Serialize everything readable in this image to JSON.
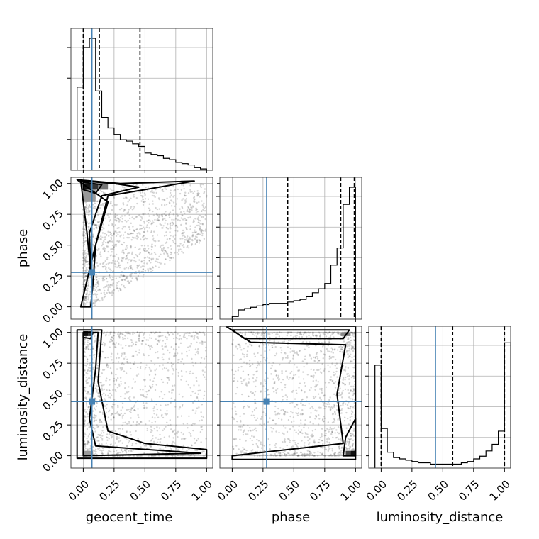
{
  "chart_data": {
    "type": "corner",
    "parameters": [
      "geocent_time",
      "phase",
      "luminosity_distance"
    ],
    "axis_range": [
      -0.1,
      1.05
    ],
    "ticks": [
      0.0,
      0.25,
      0.5,
      0.75,
      1.0
    ],
    "tick_labels": [
      "0.00",
      "0.25",
      "0.50",
      "0.75",
      "1.00"
    ],
    "grid": true,
    "truths": {
      "geocent_time": 0.07,
      "phase": 0.28,
      "luminosity_distance": 0.44
    },
    "truth_color": "#4682b4",
    "quantiles": {
      "geocent_time": [
        0.0,
        0.13,
        0.46
      ],
      "phase": [
        0.45,
        0.88,
        0.99
      ],
      "luminosity_distance": [
        0.0,
        0.58,
        1.0
      ]
    },
    "histograms": {
      "geocent_time": {
        "bin_edges": [
          -0.05,
          0.0,
          0.05,
          0.1,
          0.15,
          0.2,
          0.25,
          0.3,
          0.35,
          0.4,
          0.45,
          0.5,
          0.55,
          0.6,
          0.65,
          0.7,
          0.75,
          0.8,
          0.85,
          0.9,
          0.95,
          1.0
        ],
        "counts": [
          0.63,
          0.93,
          1.0,
          0.6,
          0.4,
          0.32,
          0.27,
          0.23,
          0.22,
          0.2,
          0.18,
          0.13,
          0.12,
          0.11,
          0.09,
          0.08,
          0.06,
          0.05,
          0.04,
          0.02,
          0.01
        ]
      },
      "phase": {
        "bin_edges": [
          0.0,
          0.05,
          0.1,
          0.15,
          0.2,
          0.25,
          0.3,
          0.35,
          0.4,
          0.45,
          0.5,
          0.55,
          0.6,
          0.65,
          0.7,
          0.75,
          0.8,
          0.85,
          0.9,
          0.95,
          1.0
        ],
        "counts": [
          0.02,
          0.07,
          0.08,
          0.09,
          0.1,
          0.11,
          0.12,
          0.12,
          0.12,
          0.13,
          0.14,
          0.15,
          0.17,
          0.2,
          0.23,
          0.27,
          0.41,
          0.54,
          0.87,
          1.0
        ]
      },
      "luminosity_distance": {
        "bin_edges": [
          -0.05,
          0.0,
          0.05,
          0.1,
          0.15,
          0.2,
          0.25,
          0.3,
          0.35,
          0.4,
          0.45,
          0.5,
          0.55,
          0.6,
          0.65,
          0.7,
          0.75,
          0.8,
          0.85,
          0.9,
          0.95,
          1.0,
          1.05
        ],
        "counts": [
          0.78,
          0.3,
          0.12,
          0.08,
          0.07,
          0.06,
          0.05,
          0.04,
          0.04,
          0.03,
          0.03,
          0.03,
          0.03,
          0.03,
          0.04,
          0.05,
          0.07,
          0.09,
          0.13,
          0.18,
          0.28,
          0.95
        ]
      }
    },
    "joint_panels": [
      {
        "x": "geocent_time",
        "y": "phase"
      },
      {
        "x": "geocent_time",
        "y": "luminosity_distance"
      },
      {
        "x": "phase",
        "y": "luminosity_distance"
      }
    ],
    "xlabel_bottom": [
      "geocent_time",
      "phase",
      "luminosity_distance"
    ],
    "ylabel_left": [
      "phase",
      "luminosity_distance"
    ]
  }
}
